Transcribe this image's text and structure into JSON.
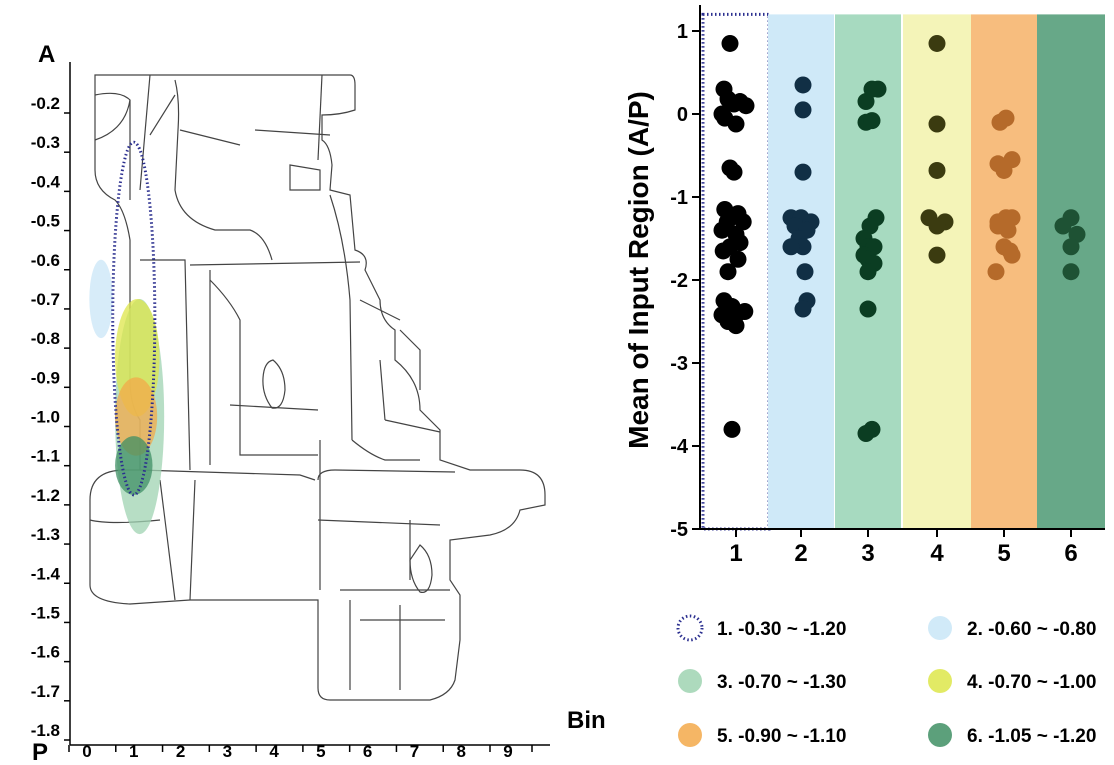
{
  "chart_data": [
    {
      "type": "diagram",
      "y_axis": {
        "top_label": "A",
        "bottom_label": "P",
        "tick_labels": [
          "-0.2",
          "-0.3",
          "-0.4",
          "-0.5",
          "-0.6",
          "-0.7",
          "-0.8",
          "-0.9",
          "-1.0",
          "-1.1",
          "-1.2",
          "-1.3",
          "-1.4",
          "-1.5",
          "-1.6",
          "-1.7",
          "-1.8"
        ],
        "ticks": [
          -0.2,
          -0.3,
          -0.4,
          -0.5,
          -0.6,
          -0.7,
          -0.8,
          -0.9,
          -1.0,
          -1.1,
          -1.2,
          -1.3,
          -1.4,
          -1.5,
          -1.6,
          -1.7,
          -1.8
        ]
      },
      "x_axis": {
        "label": "Bin",
        "tick_labels": [
          "0",
          "1",
          "2",
          "3",
          "4",
          "5",
          "6",
          "7",
          "8",
          "9"
        ],
        "ticks": [
          0,
          1,
          2,
          3,
          4,
          5,
          6,
          7,
          8,
          9
        ]
      },
      "regions": [
        {
          "label": "1",
          "y_from": -0.3,
          "y_to": -1.2,
          "x_from": 0.55,
          "x_to": 1.45,
          "style": "dotted",
          "color": "#2b2f8f"
        },
        {
          "label": "2",
          "y_from": -0.6,
          "y_to": -0.8,
          "x_from": 0.05,
          "x_to": 0.55,
          "style": "fill",
          "color": "#c9e6f7"
        },
        {
          "label": "3",
          "y_from": -0.7,
          "y_to": -1.3,
          "x_from": 0.6,
          "x_to": 1.65,
          "style": "fill",
          "color": "#9fd3b2"
        },
        {
          "label": "4",
          "y_from": -0.7,
          "y_to": -1.0,
          "x_from": 0.6,
          "x_to": 1.55,
          "style": "fill",
          "color": "#dde64a"
        },
        {
          "label": "5",
          "y_from": -0.9,
          "y_to": -1.1,
          "x_from": 0.6,
          "x_to": 1.5,
          "style": "fill",
          "color": "#f3a94a"
        },
        {
          "label": "6",
          "y_from": -1.05,
          "y_to": -1.2,
          "x_from": 0.6,
          "x_to": 1.4,
          "style": "fill",
          "color": "#3f8f64"
        }
      ]
    },
    {
      "type": "scatter",
      "ylabel": "Mean of Input Region (A/P)",
      "ylim": [
        -5,
        1.2
      ],
      "yticks": [
        1,
        0,
        -1,
        -2,
        -3,
        -4,
        -5
      ],
      "categories": [
        "1",
        "2",
        "3",
        "4",
        "5",
        "6"
      ],
      "bands": [
        {
          "category": "1",
          "color": "#ffffff",
          "border": "dotted"
        },
        {
          "category": "2",
          "color": "#cfe9f8"
        },
        {
          "category": "3",
          "color": "#a7dac0"
        },
        {
          "category": "4",
          "color": "#f4f4b8"
        },
        {
          "category": "5",
          "color": "#f7bd7e"
        },
        {
          "category": "6",
          "color": "#67a888"
        }
      ],
      "series": [
        {
          "category": "1",
          "color": "#000000",
          "points": [
            [
              -0.15,
              0.85
            ],
            [
              -0.3,
              0.3
            ],
            [
              -0.2,
              0.18
            ],
            [
              -0.05,
              0.12
            ],
            [
              0.1,
              0.15
            ],
            [
              0.25,
              0.1
            ],
            [
              -0.35,
              0.0
            ],
            [
              -0.28,
              -0.05
            ],
            [
              0.0,
              -0.12
            ],
            [
              -0.15,
              -0.65
            ],
            [
              -0.05,
              -0.7
            ],
            [
              -0.28,
              -1.15
            ],
            [
              0.05,
              -1.2
            ],
            [
              0.18,
              -1.3
            ],
            [
              -0.22,
              -1.3
            ],
            [
              -0.35,
              -1.4
            ],
            [
              0.0,
              -1.45
            ],
            [
              -0.15,
              -1.6
            ],
            [
              0.1,
              -1.55
            ],
            [
              -0.32,
              -1.65
            ],
            [
              0.05,
              -1.75
            ],
            [
              -0.2,
              -1.9
            ],
            [
              -0.3,
              -2.25
            ],
            [
              -0.1,
              -2.32
            ],
            [
              0.05,
              -2.4
            ],
            [
              0.22,
              -2.38
            ],
            [
              -0.35,
              -2.42
            ],
            [
              -0.2,
              -2.5
            ],
            [
              0.0,
              -2.55
            ],
            [
              -0.1,
              -3.8
            ]
          ]
        },
        {
          "category": "2",
          "color": "#112f45",
          "points": [
            [
              0.05,
              0.35
            ],
            [
              0.05,
              0.05
            ],
            [
              0.05,
              -0.7
            ],
            [
              -0.25,
              -1.25
            ],
            [
              0.0,
              -1.25
            ],
            [
              0.25,
              -1.3
            ],
            [
              -0.15,
              -1.35
            ],
            [
              0.15,
              -1.4
            ],
            [
              -0.05,
              -1.5
            ],
            [
              0.05,
              -1.6
            ],
            [
              -0.25,
              -1.6
            ],
            [
              0.1,
              -1.9
            ],
            [
              0.15,
              -2.25
            ],
            [
              0.05,
              -2.35
            ]
          ]
        },
        {
          "category": "3",
          "color": "#0b3d22",
          "points": [
            [
              -0.05,
              0.15
            ],
            [
              0.25,
              0.3
            ],
            [
              0.1,
              0.3
            ],
            [
              -0.05,
              -0.1
            ],
            [
              0.1,
              -0.08
            ],
            [
              0.2,
              -1.25
            ],
            [
              0.05,
              -1.35
            ],
            [
              -0.1,
              -1.5
            ],
            [
              0.0,
              -1.6
            ],
            [
              0.15,
              -1.6
            ],
            [
              -0.1,
              -1.7
            ],
            [
              0.0,
              -1.75
            ],
            [
              0.15,
              -1.8
            ],
            [
              0.0,
              -1.9
            ],
            [
              0.0,
              -2.35
            ],
            [
              0.1,
              -3.8
            ],
            [
              -0.05,
              -3.85
            ]
          ]
        },
        {
          "category": "4",
          "color": "#3b3b10",
          "points": [
            [
              0.0,
              0.85
            ],
            [
              0.0,
              -0.12
            ],
            [
              0.0,
              -0.68
            ],
            [
              -0.2,
              -1.25
            ],
            [
              0.2,
              -1.3
            ],
            [
              0.0,
              -1.35
            ],
            [
              0.0,
              -1.7
            ]
          ]
        },
        {
          "category": "5",
          "color": "#b56a2a",
          "points": [
            [
              -0.1,
              -0.1
            ],
            [
              0.05,
              -0.05
            ],
            [
              -0.15,
              -0.6
            ],
            [
              0.2,
              -0.55
            ],
            [
              0.0,
              -0.68
            ],
            [
              -0.15,
              -1.3
            ],
            [
              0.05,
              -1.25
            ],
            [
              0.2,
              -1.25
            ],
            [
              -0.15,
              -1.35
            ],
            [
              0.1,
              -1.4
            ],
            [
              0.0,
              -1.6
            ],
            [
              0.15,
              -1.65
            ],
            [
              0.2,
              -1.7
            ],
            [
              -0.2,
              -1.9
            ]
          ]
        },
        {
          "category": "6",
          "color": "#1e5234",
          "points": [
            [
              -0.2,
              -1.35
            ],
            [
              0.0,
              -1.25
            ],
            [
              0.15,
              -1.45
            ],
            [
              0.0,
              -1.6
            ],
            [
              0.0,
              -1.9
            ]
          ]
        }
      ]
    }
  ],
  "legend": [
    {
      "text": "1. -0.30 ~ -1.20",
      "color": "#2b2f8f",
      "style": "dotted"
    },
    {
      "text": "2. -0.60 ~ -0.80",
      "color": "#c9e6f7",
      "style": "fill"
    },
    {
      "text": "3. -0.70 ~ -1.30",
      "color": "#9fd3b2",
      "style": "fill"
    },
    {
      "text": "4. -0.70 ~ -1.00",
      "color": "#dde64a",
      "style": "fill"
    },
    {
      "text": "5. -0.90 ~ -1.10",
      "color": "#f3a94a",
      "style": "fill"
    },
    {
      "text": "6. -1.05 ~ -1.20",
      "color": "#3f8f64",
      "style": "fill"
    }
  ]
}
